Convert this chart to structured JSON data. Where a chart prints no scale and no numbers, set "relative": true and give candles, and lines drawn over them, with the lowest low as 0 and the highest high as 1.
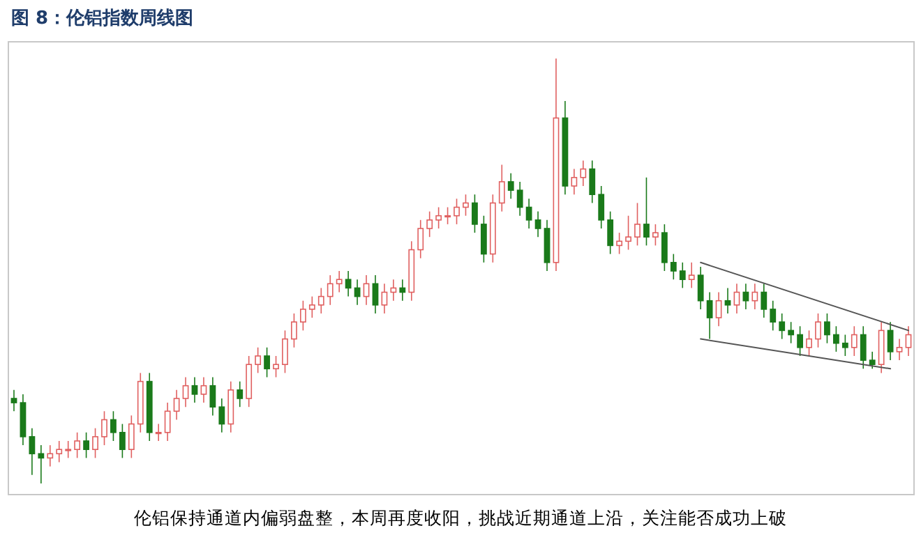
{
  "chart_data": {
    "type": "candlestick",
    "title": "图 8：伦铝指数周线图",
    "annotations": [
      "伦铝保持通道内偏弱盘整，本周再度收阳，挑战近期通道上沿，关注能否成功上破"
    ],
    "relative": true,
    "colors": [
      "#1a7a1a",
      "#1a7a1a",
      "#1a7a1a",
      "#1a7a1a",
      "#e06060",
      "#e06060",
      "#e06060",
      "#e06060",
      "#1a7a1a",
      "#e06060",
      "#e06060",
      "#1a7a1a",
      "#1a7a1a",
      "#e06060",
      "#e06060",
      "#1a7a1a",
      "#e06060",
      "#e06060",
      "#e06060",
      "#e06060",
      "#1a7a1a",
      "#e06060",
      "#1a7a1a",
      "#1a7a1a",
      "#e06060",
      "#1a7a1a",
      "#e06060",
      "#e06060",
      "#1a7a1a",
      "#e06060",
      "#e06060",
      "#e06060",
      "#e06060",
      "#e06060",
      "#e06060",
      "#e06060",
      "#e06060",
      "#1a7a1a",
      "#1a7a1a",
      "#e06060",
      "#1a7a1a",
      "#e06060",
      "#e06060",
      "#1a7a1a",
      "#e06060",
      "#e06060",
      "#e06060",
      "#e06060",
      "#e06060",
      "#e06060",
      "#e06060",
      "#1a7a1a",
      "#1a7a1a",
      "#e06060",
      "#e06060",
      "#1a7a1a",
      "#1a7a1a",
      "#1a7a1a",
      "#1a7a1a",
      "#1a7a1a",
      "#e06060",
      "#1a7a1a",
      "#e06060",
      "#e06060",
      "#1a7a1a",
      "#1a7a1a",
      "#1a7a1a",
      "#e06060",
      "#e06060",
      "#e06060",
      "#1a7a1a",
      "#e06060",
      "#1a7a1a",
      "#1a7a1a",
      "#1a7a1a",
      "#e06060",
      "#1a7a1a",
      "#1a7a1a",
      "#e06060",
      "#1a7a1a",
      "#e06060",
      "#1a7a1a",
      "#e06060",
      "#1a7a1a",
      "#1a7a1a",
      "#1a7a1a",
      "#1a7a1a",
      "#1a7a1a",
      "#e06060",
      "#e06060",
      "#1a7a1a",
      "#1a7a1a",
      "#1a7a1a",
      "#e06060",
      "#1a7a1a",
      "#1a7a1a",
      "#e06060",
      "#1a7a1a",
      "#e06060",
      "#e06060"
    ],
    "categories": [
      null,
      null,
      null,
      null,
      null,
      null,
      null,
      null,
      null,
      null,
      null,
      null,
      null,
      null,
      null,
      null,
      null,
      null,
      null,
      null,
      null,
      null,
      null,
      null,
      null,
      null,
      null,
      null,
      null,
      null,
      null,
      null,
      null,
      null,
      null,
      null,
      null,
      null,
      null,
      null,
      null,
      null,
      null,
      null,
      null,
      null,
      null,
      null,
      null,
      null,
      null,
      null,
      null,
      null,
      null,
      null,
      null,
      null,
      null,
      null,
      null,
      null,
      null,
      null,
      null,
      null,
      null,
      null,
      null,
      null,
      null,
      null,
      null,
      null,
      null,
      null,
      null,
      null,
      null,
      null,
      null,
      null,
      null,
      null,
      null,
      null,
      null,
      null,
      null,
      null,
      null,
      null,
      null,
      null,
      null,
      null,
      null,
      null,
      null,
      null
    ],
    "ohlc": [
      [
        0.2,
        0.22,
        0.17,
        0.19
      ],
      [
        0.19,
        0.21,
        0.09,
        0.11
      ],
      [
        0.11,
        0.13,
        0.02,
        0.07
      ],
      [
        0.07,
        0.09,
        0.0,
        0.06
      ],
      [
        0.06,
        0.09,
        0.04,
        0.07
      ],
      [
        0.07,
        0.1,
        0.05,
        0.08
      ],
      [
        0.08,
        0.1,
        0.06,
        0.08
      ],
      [
        0.08,
        0.12,
        0.06,
        0.1
      ],
      [
        0.1,
        0.12,
        0.06,
        0.08
      ],
      [
        0.08,
        0.13,
        0.06,
        0.11
      ],
      [
        0.11,
        0.17,
        0.09,
        0.15
      ],
      [
        0.15,
        0.17,
        0.1,
        0.12
      ],
      [
        0.12,
        0.14,
        0.06,
        0.08
      ],
      [
        0.08,
        0.16,
        0.06,
        0.14
      ],
      [
        0.14,
        0.26,
        0.12,
        0.24
      ],
      [
        0.24,
        0.26,
        0.1,
        0.12
      ],
      [
        0.12,
        0.14,
        0.1,
        0.12
      ],
      [
        0.12,
        0.19,
        0.1,
        0.17
      ],
      [
        0.17,
        0.22,
        0.15,
        0.2
      ],
      [
        0.2,
        0.25,
        0.18,
        0.23
      ],
      [
        0.23,
        0.25,
        0.19,
        0.21
      ],
      [
        0.21,
        0.25,
        0.19,
        0.23
      ],
      [
        0.23,
        0.25,
        0.16,
        0.18
      ],
      [
        0.18,
        0.2,
        0.12,
        0.14
      ],
      [
        0.14,
        0.24,
        0.12,
        0.22
      ],
      [
        0.22,
        0.24,
        0.18,
        0.2
      ],
      [
        0.2,
        0.3,
        0.18,
        0.28
      ],
      [
        0.28,
        0.32,
        0.26,
        0.3
      ],
      [
        0.3,
        0.32,
        0.25,
        0.27
      ],
      [
        0.27,
        0.3,
        0.25,
        0.28
      ],
      [
        0.28,
        0.36,
        0.26,
        0.34
      ],
      [
        0.34,
        0.4,
        0.32,
        0.38
      ],
      [
        0.38,
        0.43,
        0.36,
        0.41
      ],
      [
        0.41,
        0.44,
        0.39,
        0.42
      ],
      [
        0.42,
        0.46,
        0.4,
        0.44
      ],
      [
        0.44,
        0.49,
        0.42,
        0.47
      ],
      [
        0.47,
        0.5,
        0.45,
        0.48
      ],
      [
        0.48,
        0.5,
        0.44,
        0.46
      ],
      [
        0.46,
        0.48,
        0.42,
        0.44
      ],
      [
        0.44,
        0.49,
        0.42,
        0.47
      ],
      [
        0.47,
        0.49,
        0.4,
        0.42
      ],
      [
        0.42,
        0.47,
        0.4,
        0.45
      ],
      [
        0.45,
        0.48,
        0.43,
        0.46
      ],
      [
        0.46,
        0.48,
        0.43,
        0.45
      ],
      [
        0.45,
        0.57,
        0.43,
        0.55
      ],
      [
        0.55,
        0.62,
        0.53,
        0.6
      ],
      [
        0.6,
        0.64,
        0.58,
        0.62
      ],
      [
        0.62,
        0.65,
        0.6,
        0.63
      ],
      [
        0.63,
        0.65,
        0.61,
        0.63
      ],
      [
        0.63,
        0.67,
        0.61,
        0.65
      ],
      [
        0.65,
        0.68,
        0.63,
        0.66
      ],
      [
        0.66,
        0.68,
        0.59,
        0.61
      ],
      [
        0.61,
        0.63,
        0.52,
        0.54
      ],
      [
        0.54,
        0.68,
        0.52,
        0.66
      ],
      [
        0.66,
        0.75,
        0.64,
        0.71
      ],
      [
        0.71,
        0.73,
        0.67,
        0.69
      ],
      [
        0.69,
        0.71,
        0.63,
        0.65
      ],
      [
        0.65,
        0.67,
        0.6,
        0.62
      ],
      [
        0.62,
        0.64,
        0.58,
        0.6
      ],
      [
        0.6,
        0.62,
        0.5,
        0.52
      ],
      [
        0.52,
        1.0,
        0.5,
        0.86
      ],
      [
        0.86,
        0.9,
        0.68,
        0.7
      ],
      [
        0.7,
        0.74,
        0.68,
        0.72
      ],
      [
        0.72,
        0.76,
        0.7,
        0.74
      ],
      [
        0.74,
        0.76,
        0.66,
        0.68
      ],
      [
        0.68,
        0.7,
        0.6,
        0.62
      ],
      [
        0.62,
        0.64,
        0.54,
        0.56
      ],
      [
        0.56,
        0.59,
        0.54,
        0.57
      ],
      [
        0.57,
        0.63,
        0.55,
        0.58
      ],
      [
        0.58,
        0.66,
        0.56,
        0.61
      ],
      [
        0.61,
        0.72,
        0.56,
        0.58
      ],
      [
        0.58,
        0.61,
        0.56,
        0.59
      ],
      [
        0.59,
        0.61,
        0.5,
        0.52
      ],
      [
        0.52,
        0.54,
        0.48,
        0.5
      ],
      [
        0.5,
        0.52,
        0.46,
        0.48
      ],
      [
        0.48,
        0.52,
        0.46,
        0.49
      ],
      [
        0.49,
        0.51,
        0.41,
        0.43
      ],
      [
        0.43,
        0.45,
        0.34,
        0.39
      ],
      [
        0.39,
        0.45,
        0.37,
        0.43
      ],
      [
        0.43,
        0.46,
        0.4,
        0.42
      ],
      [
        0.42,
        0.47,
        0.4,
        0.45
      ],
      [
        0.45,
        0.47,
        0.41,
        0.43
      ],
      [
        0.43,
        0.47,
        0.41,
        0.45
      ],
      [
        0.45,
        0.47,
        0.39,
        0.41
      ],
      [
        0.41,
        0.43,
        0.36,
        0.38
      ],
      [
        0.38,
        0.4,
        0.34,
        0.36
      ],
      [
        0.36,
        0.38,
        0.33,
        0.35
      ],
      [
        0.35,
        0.37,
        0.3,
        0.32
      ],
      [
        0.32,
        0.36,
        0.3,
        0.34
      ],
      [
        0.34,
        0.4,
        0.32,
        0.38
      ],
      [
        0.38,
        0.4,
        0.33,
        0.35
      ],
      [
        0.35,
        0.37,
        0.31,
        0.33
      ],
      [
        0.33,
        0.35,
        0.3,
        0.32
      ],
      [
        0.32,
        0.37,
        0.3,
        0.35
      ],
      [
        0.35,
        0.37,
        0.27,
        0.29
      ],
      [
        0.29,
        0.31,
        0.27,
        0.28
      ],
      [
        0.28,
        0.38,
        0.26,
        0.36
      ],
      [
        0.36,
        0.38,
        0.29,
        0.31
      ],
      [
        0.31,
        0.34,
        0.29,
        0.32
      ],
      [
        0.32,
        0.37,
        0.3,
        0.35
      ]
    ],
    "series": [
      {
        "type": "line",
        "color": "#555555",
        "values": [
          null,
          null,
          null,
          null,
          null,
          null,
          null,
          null,
          null,
          null,
          null,
          null,
          null,
          null,
          null,
          null,
          null,
          null,
          null,
          null,
          null,
          null,
          null,
          null,
          null,
          null,
          null,
          null,
          null,
          null,
          null,
          null,
          null,
          null,
          null,
          null,
          null,
          null,
          null,
          null,
          null,
          null,
          null,
          null,
          null,
          null,
          null,
          null,
          null,
          null,
          null,
          null,
          null,
          null,
          null,
          null,
          null,
          null,
          null,
          null,
          null,
          null,
          null,
          null,
          null,
          null,
          null,
          null,
          null,
          null,
          null,
          null,
          null,
          null,
          null,
          null,
          0.52,
          null,
          null,
          null,
          null,
          null,
          null,
          null,
          null,
          null,
          null,
          null,
          null,
          null,
          null,
          null,
          null,
          null,
          null,
          null,
          null,
          null,
          null,
          0.36
        ]
      },
      {
        "type": "line",
        "color": "#555555",
        "values": [
          null,
          null,
          null,
          null,
          null,
          null,
          null,
          null,
          null,
          null,
          null,
          null,
          null,
          null,
          null,
          null,
          null,
          null,
          null,
          null,
          null,
          null,
          null,
          null,
          null,
          null,
          null,
          null,
          null,
          null,
          null,
          null,
          null,
          null,
          null,
          null,
          null,
          null,
          null,
          null,
          null,
          null,
          null,
          null,
          null,
          null,
          null,
          null,
          null,
          null,
          null,
          null,
          null,
          null,
          null,
          null,
          null,
          null,
          null,
          null,
          null,
          null,
          null,
          null,
          null,
          null,
          null,
          null,
          null,
          null,
          null,
          null,
          null,
          null,
          null,
          null,
          0.34,
          null,
          null,
          null,
          null,
          null,
          null,
          null,
          null,
          null,
          null,
          null,
          null,
          null,
          null,
          null,
          null,
          null,
          null,
          null,
          null,
          0.27,
          null,
          null
        ]
      }
    ]
  }
}
